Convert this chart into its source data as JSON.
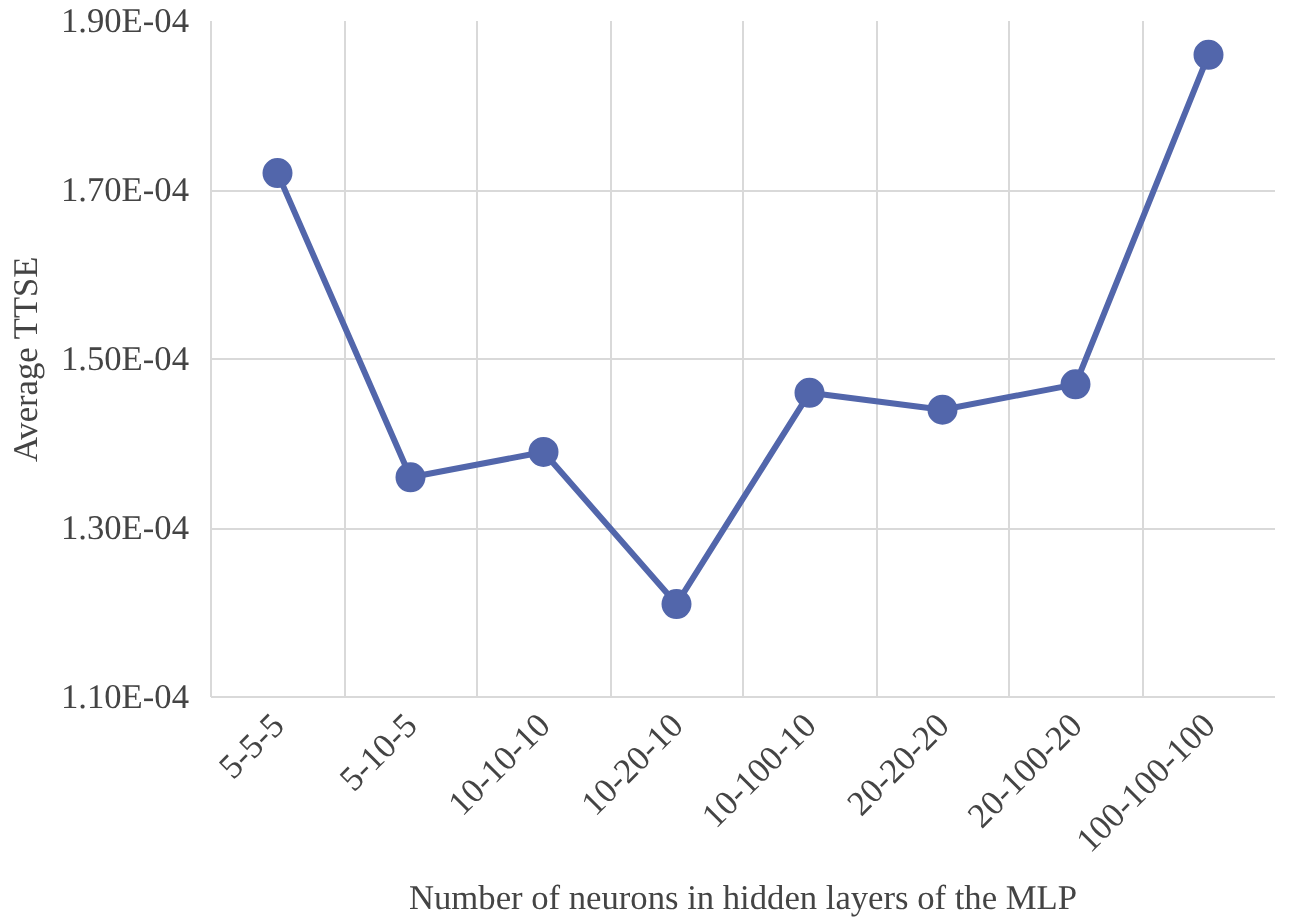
{
  "chart_data": {
    "type": "line",
    "xlabel": "Number of neurons in hidden layers of the MLP",
    "ylabel": "Average TTSE",
    "categories": [
      "5-5-5",
      "5-10-5",
      "10-10-10",
      "10-20-10",
      "10-100-10",
      "20-20-20",
      "20-100-20",
      "100-100-100"
    ],
    "series": [
      {
        "color": "#5266ab",
        "values": [
          0.000172,
          0.000136,
          0.000139,
          0.000121,
          0.000146,
          0.000144,
          0.000147,
          0.000186
        ]
      }
    ],
    "ylim": [
      0.00011,
      0.00019
    ],
    "yticks": [
      {
        "value": 0.00011,
        "label": "1.10E-04"
      },
      {
        "value": 0.00013,
        "label": "1.30E-04"
      },
      {
        "value": 0.00015,
        "label": "1.50E-04"
      },
      {
        "value": 0.00017,
        "label": "1.70E-04"
      },
      {
        "value": 0.00019,
        "label": "1.90E-04"
      }
    ],
    "grid": true,
    "marker": "circle",
    "line_style": "solid"
  }
}
